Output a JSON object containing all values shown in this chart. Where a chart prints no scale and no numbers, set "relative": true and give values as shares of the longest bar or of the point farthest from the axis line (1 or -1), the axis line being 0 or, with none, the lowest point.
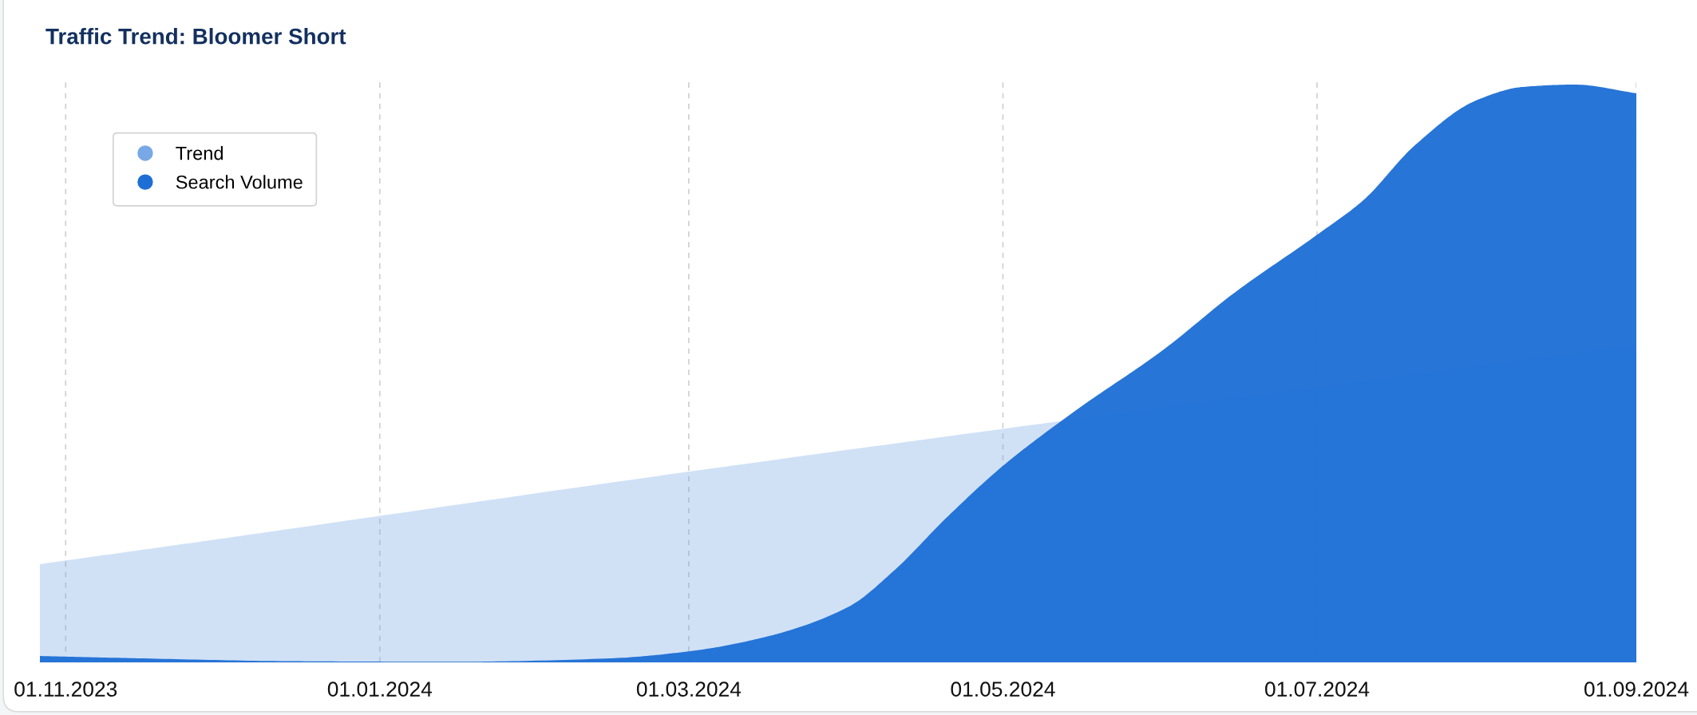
{
  "chart_data": {
    "type": "area",
    "title": "Traffic Trend: Bloomer Short",
    "relative": true,
    "xlim": [
      "2023-10-27",
      "2024-09-01"
    ],
    "xticks": [
      {
        "value": "2023-11-01",
        "label": "01.11.2023"
      },
      {
        "value": "2024-01-01",
        "label": "01.01.2024"
      },
      {
        "value": "2024-03-01",
        "label": "01.03.2024"
      },
      {
        "value": "2024-05-01",
        "label": "01.05.2024"
      },
      {
        "value": "2024-07-01",
        "label": "01.07.2024"
      },
      {
        "value": "2024-09-01",
        "label": "01.09.2024"
      }
    ],
    "grid": "x",
    "legend": "top left",
    "series": [
      {
        "name": "Trend",
        "color": "#78a8e6",
        "x": [
          "2023-10-27",
          "2023-11-28",
          "2024-03-01",
          "2024-09-01"
        ],
        "values": [
          0.17,
          0.21,
          0.33,
          0.55
        ]
      },
      {
        "name": "Search Volume",
        "color": "#1e6fd5",
        "x": [
          "2023-10-27",
          "2023-11-15",
          "2023-12-15",
          "2024-01-15",
          "2024-02-15",
          "2024-03-01",
          "2024-03-15",
          "2024-04-01",
          "2024-04-10",
          "2024-04-20",
          "2024-05-01",
          "2024-05-15",
          "2024-06-01",
          "2024-06-15",
          "2024-07-01",
          "2024-07-10",
          "2024-07-20",
          "2024-08-01",
          "2024-08-10",
          "2024-08-20",
          "2024-09-01"
        ],
        "values": [
          0.011,
          0.007,
          0.002,
          0.001,
          0.007,
          0.019,
          0.042,
          0.096,
          0.16,
          0.25,
          0.34,
          0.435,
          0.54,
          0.64,
          0.74,
          0.8,
          0.895,
          0.973,
          0.996,
          1.0,
          0.985
        ]
      }
    ]
  }
}
